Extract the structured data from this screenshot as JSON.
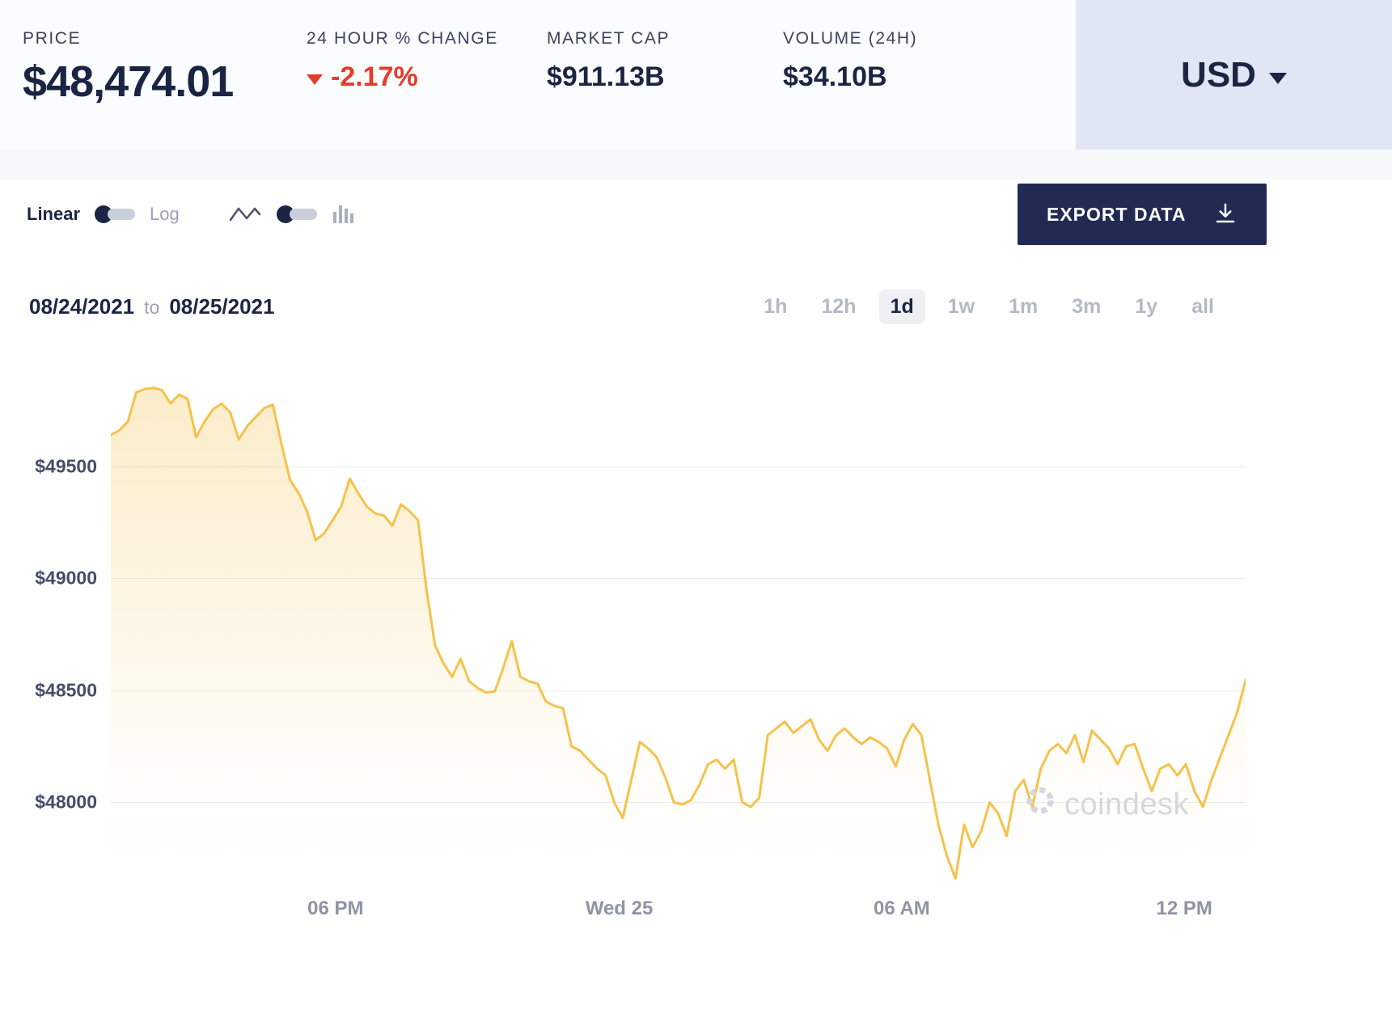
{
  "header": {
    "stats": [
      {
        "label": "PRICE",
        "value": "$48,474.01"
      },
      {
        "label": "24 HOUR % CHANGE",
        "value": "-2.17%"
      },
      {
        "label": "MARKET CAP",
        "value": "$911.13B"
      },
      {
        "label": "VOLUME (24H)",
        "value": "$34.10B"
      }
    ],
    "currency_selector": {
      "value": "USD"
    }
  },
  "toolbar": {
    "scale_toggle": {
      "linear": "Linear",
      "log": "Log"
    },
    "export_label": "EXPORT DATA"
  },
  "range": {
    "start": "08/24/2021",
    "separator": "to",
    "end": "08/25/2021"
  },
  "time_tabs": {
    "options": [
      "1h",
      "12h",
      "1d",
      "1w",
      "1m",
      "3m",
      "1y",
      "all"
    ],
    "active": "1d"
  },
  "watermark": "coindesk",
  "colors": {
    "navy": "#1b2543",
    "red": "#e53b2c",
    "line": "#f5c24b",
    "grid": "#e9ebef",
    "usd_box_bg": "#e1e6f4",
    "export_bg": "#212b52",
    "tab_inactive": "#b3bac6"
  },
  "chart_data": {
    "type": "area",
    "title": "",
    "xlabel": "",
    "ylabel": "",
    "grid": true,
    "line_color": "#f5c24b",
    "x_axis_labels": [
      "06 PM",
      "Wed 25",
      "06 AM",
      "12 PM"
    ],
    "x_axis_label_positions": [
      0.198,
      0.448,
      0.697,
      0.946
    ],
    "y_ticks": [
      49500,
      49000,
      48500,
      48000
    ],
    "y_tick_labels": [
      "$49500",
      "$49000",
      "$48500",
      "$48000"
    ],
    "ylim": [
      47640,
      49950
    ],
    "values": [
      49640,
      49660,
      49700,
      49830,
      49845,
      49850,
      49840,
      49780,
      49820,
      49800,
      49630,
      49700,
      49755,
      49780,
      49740,
      49620,
      49680,
      49720,
      49760,
      49775,
      49600,
      49440,
      49380,
      49300,
      49170,
      49200,
      49260,
      49320,
      49445,
      49380,
      49320,
      49290,
      49280,
      49235,
      49330,
      49300,
      49260,
      48950,
      48700,
      48620,
      48560,
      48640,
      48540,
      48510,
      48490,
      48495,
      48600,
      48720,
      48560,
      48540,
      48530,
      48450,
      48430,
      48420,
      48250,
      48230,
      48190,
      48150,
      48120,
      48000,
      47930,
      48100,
      48270,
      48240,
      48200,
      48110,
      48000,
      47990,
      48010,
      48080,
      48170,
      48190,
      48150,
      48190,
      48000,
      47980,
      48020,
      48300,
      48330,
      48360,
      48310,
      48340,
      48370,
      48280,
      48230,
      48300,
      48330,
      48290,
      48260,
      48290,
      48270,
      48240,
      48160,
      48280,
      48350,
      48300,
      48100,
      47900,
      47760,
      47660,
      47900,
      47800,
      47870,
      48000,
      47950,
      47850,
      48050,
      48100,
      47980,
      48150,
      48230,
      48260,
      48220,
      48300,
      48180,
      48320,
      48280,
      48240,
      48170,
      48250,
      48260,
      48150,
      48050,
      48150,
      48170,
      48120,
      48170,
      48050,
      47980,
      48100,
      48200,
      48300,
      48400,
      48545
    ]
  }
}
